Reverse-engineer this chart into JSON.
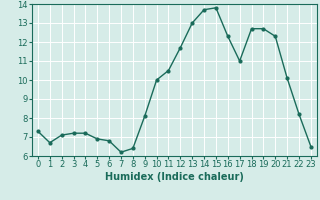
{
  "xlabel": "Humidex (Indice chaleur)",
  "x": [
    0,
    1,
    2,
    3,
    4,
    5,
    6,
    7,
    8,
    9,
    10,
    11,
    12,
    13,
    14,
    15,
    16,
    17,
    18,
    19,
    20,
    21,
    22,
    23
  ],
  "y": [
    7.3,
    6.7,
    7.1,
    7.2,
    7.2,
    6.9,
    6.8,
    6.2,
    6.4,
    8.1,
    10.0,
    10.5,
    11.7,
    13.0,
    13.7,
    13.8,
    12.3,
    11.0,
    12.7,
    12.7,
    12.3,
    10.1,
    8.2,
    6.5
  ],
  "line_color": "#1a6b5a",
  "marker": "o",
  "marker_size": 2,
  "bg_color": "#d6ece8",
  "grid_color": "#ffffff",
  "ylim": [
    6,
    14
  ],
  "xlim": [
    -0.5,
    23.5
  ],
  "yticks": [
    6,
    7,
    8,
    9,
    10,
    11,
    12,
    13,
    14
  ],
  "xticks": [
    0,
    1,
    2,
    3,
    4,
    5,
    6,
    7,
    8,
    9,
    10,
    11,
    12,
    13,
    14,
    15,
    16,
    17,
    18,
    19,
    20,
    21,
    22,
    23
  ],
  "tick_label_fontsize": 6,
  "xlabel_fontsize": 7,
  "line_width": 1.0
}
